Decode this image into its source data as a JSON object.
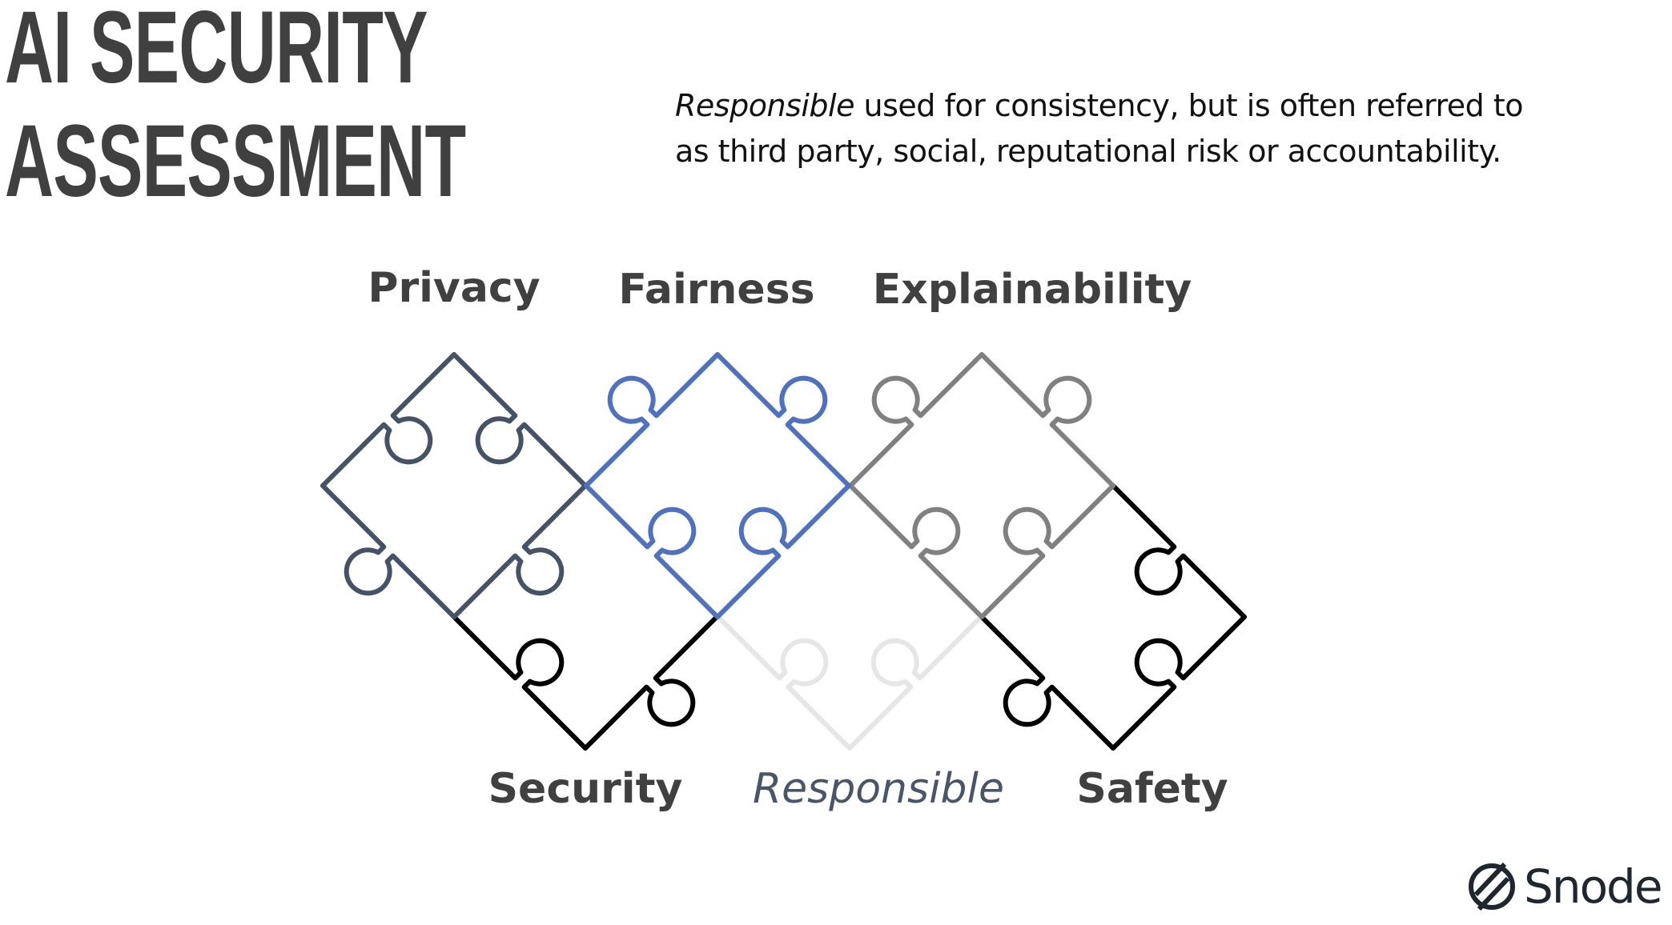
{
  "title": {
    "line1": "AI SECURITY",
    "line2": "ASSESSMENT"
  },
  "note": {
    "emphasis": "Responsible",
    "line1_rest": " used for consistency, but is often referred to",
    "line2": "as third party, social, reputational risk or accountability."
  },
  "pieces": {
    "privacy": {
      "label": "Privacy",
      "color": "#465366"
    },
    "fairness": {
      "label": "Fairness",
      "color": "#4f71be"
    },
    "explainability": {
      "label": "Explainability",
      "color": "#808080"
    },
    "security": {
      "label": "Security",
      "color": "#000000"
    },
    "responsible": {
      "label": "Responsible",
      "color": "#e6e6e6"
    },
    "safety": {
      "label": "Safety",
      "color": "#000000"
    }
  },
  "logo": {
    "text": "Snode"
  }
}
